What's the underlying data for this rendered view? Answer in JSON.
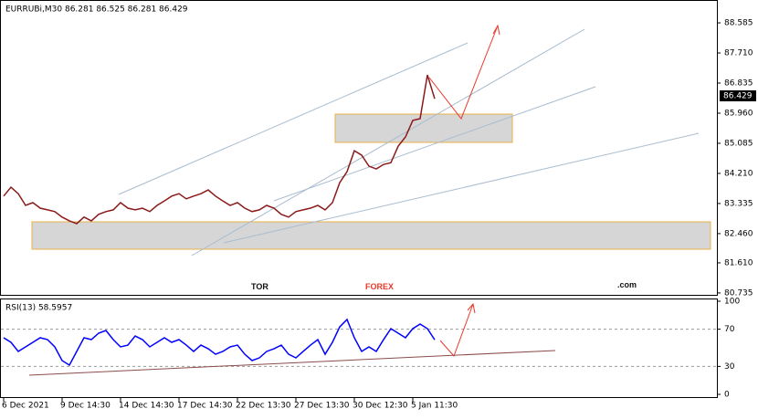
{
  "chart_data": [
    {
      "type": "line",
      "title": "EURRUBi,M30  86.281 86.525 86.281 86.429",
      "price_tag": "86.429",
      "watermark": [
        "TOR",
        "FOREX",
        ".com"
      ],
      "categories": [
        "6 Dec 2021",
        null,
        null,
        null,
        null,
        null,
        null,
        null,
        "9 Dec 14:30",
        null,
        null,
        null,
        null,
        null,
        null,
        null,
        "14 Dec 14:30",
        null,
        null,
        null,
        null,
        null,
        null,
        null,
        "17 Dec 14:30",
        null,
        null,
        null,
        null,
        null,
        null,
        null,
        "22 Dec 13:30",
        null,
        null,
        null,
        null,
        null,
        null,
        null,
        "27 Dec 13:30",
        null,
        null,
        null,
        null,
        null,
        null,
        null,
        "30 Dec 12:30",
        null,
        null,
        null,
        null,
        null,
        null,
        null,
        "5 Jan 11:30",
        null,
        null,
        null
      ],
      "values": [
        83.55,
        83.81,
        83.62,
        83.28,
        83.36,
        83.2,
        83.15,
        83.1,
        82.94,
        82.83,
        82.75,
        82.94,
        82.83,
        83.02,
        83.1,
        83.15,
        83.36,
        83.2,
        83.15,
        83.2,
        83.1,
        83.28,
        83.41,
        83.55,
        83.62,
        83.47,
        83.55,
        83.62,
        83.73,
        83.55,
        83.41,
        83.28,
        83.36,
        83.2,
        83.1,
        83.15,
        83.28,
        83.2,
        83.02,
        82.94,
        83.1,
        83.15,
        83.2,
        83.28,
        83.15,
        83.36,
        83.94,
        84.26,
        84.87,
        84.74,
        84.42,
        84.34,
        84.47,
        84.52,
        85.0,
        85.27,
        85.75,
        85.8,
        87.07,
        86.38
      ],
      "color": "#8b1a1a",
      "ylim": [
        80.68,
        89.17
      ],
      "yticks": [
        80.735,
        {
          "value": 81.61,
          "label": "81.610"
        },
        {
          "value": 82.46,
          "label": "82.460"
        },
        83.335,
        {
          "value": 84.21,
          "label": "84.210"
        },
        85.085,
        {
          "value": 85.96,
          "label": "85.960"
        },
        86.835,
        {
          "value": 87.71,
          "label": "87.710"
        },
        88.585
      ]
    },
    {
      "type": "line",
      "title": "RSI(13) 58.5957",
      "values": [
        60.8,
        55.9,
        46.1,
        51.0,
        55.9,
        60.8,
        58.8,
        51.0,
        36.3,
        31.4,
        46.1,
        60.8,
        58.8,
        65.7,
        68.6,
        58.8,
        51.0,
        52.9,
        62.7,
        58.8,
        51.0,
        55.9,
        60.8,
        55.9,
        58.8,
        52.9,
        46.1,
        52.9,
        49.0,
        43.1,
        46.1,
        51.0,
        52.9,
        43.1,
        36.3,
        39.2,
        46.1,
        49.0,
        52.9,
        43.1,
        39.2,
        46.1,
        52.9,
        58.8,
        43.1,
        55.9,
        72.5,
        80.4,
        60.8,
        46.1,
        51.0,
        46.1,
        58.8,
        70.6,
        65.7,
        60.8,
        70.6,
        75.5,
        70.6,
        58.6
      ],
      "color": "#0000ff",
      "ylim": [
        0,
        100
      ],
      "yticks": [
        0,
        30,
        70,
        100
      ],
      "grid": [
        30,
        70
      ]
    }
  ]
}
